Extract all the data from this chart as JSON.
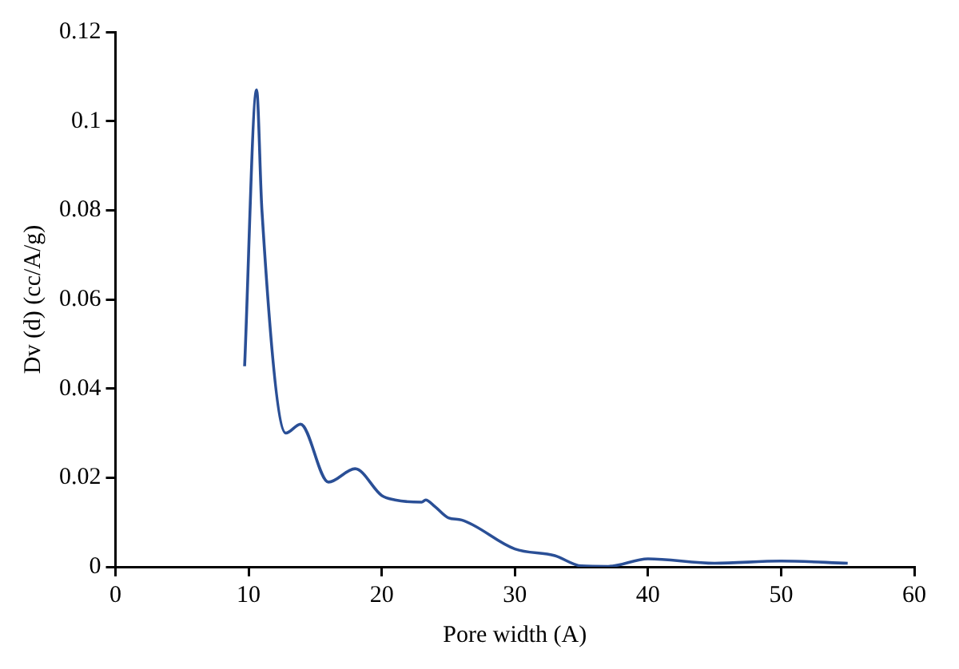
{
  "chart_data": {
    "type": "line",
    "xlabel": "Pore width (A)",
    "ylabel": "Dv (d) (cc/A/g)",
    "xlim": [
      0,
      60
    ],
    "xticks": [
      0,
      10,
      20,
      30,
      40,
      50,
      60
    ],
    "ylim": [
      0,
      0.12
    ],
    "yticks": [
      0,
      0.02,
      0.04,
      0.06,
      0.08,
      0.1,
      0.12
    ],
    "grid": false,
    "legend": false,
    "marker": "none",
    "series": [
      {
        "color": "#2a4f96",
        "x": [
          9.7,
          10.6,
          11.0,
          12.8,
          13.9,
          16,
          18,
          20,
          21,
          23,
          23.3,
          24,
          25,
          26,
          30,
          33,
          35,
          37,
          40,
          45,
          50,
          55
        ],
        "values": [
          0.045,
          0.107,
          0.08,
          0.03,
          0.032,
          0.019,
          0.022,
          0.016,
          0.015,
          0.0145,
          0.015,
          0.0135,
          0.011,
          0.0105,
          0.004,
          0.0025,
          0.0002,
          0.0001,
          0.0018,
          0.0008,
          0.0013,
          0.0008
        ]
      }
    ]
  }
}
